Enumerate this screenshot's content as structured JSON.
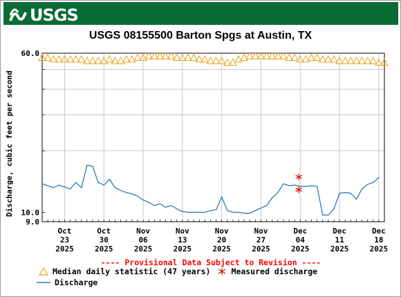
{
  "header": {
    "logo_text": "USGS"
  },
  "chart_data": {
    "type": "line",
    "title": "USGS 08155500 Barton Spgs at Austin, TX",
    "ylabel": "Discharge, cubic feet per second",
    "xlabel": "",
    "y_scale": "log",
    "ylim": [
      9.0,
      60.0
    ],
    "y_ticks": [
      {
        "value": 9.0,
        "label": "9.0"
      },
      {
        "value": 10.0,
        "label": "10.0"
      },
      {
        "value": 60.0,
        "label": "60.0"
      }
    ],
    "y_gridlines": [
      20,
      30,
      40,
      50
    ],
    "xlim": [
      "2025-10-19",
      "2025-12-19"
    ],
    "x_ticks": [
      {
        "date": "2025-10-23",
        "line1": "Oct",
        "line2": "23",
        "line3": "2025"
      },
      {
        "date": "2025-10-30",
        "line1": "Oct",
        "line2": "30",
        "line3": "2025"
      },
      {
        "date": "2025-11-06",
        "line1": "Nov",
        "line2": "06",
        "line3": "2025"
      },
      {
        "date": "2025-11-13",
        "line1": "Nov",
        "line2": "13",
        "line3": "2025"
      },
      {
        "date": "2025-11-20",
        "line1": "Nov",
        "line2": "20",
        "line3": "2025"
      },
      {
        "date": "2025-11-27",
        "line1": "Nov",
        "line2": "27",
        "line3": "2025"
      },
      {
        "date": "2025-12-04",
        "line1": "Dec",
        "line2": "04",
        "line3": "2025"
      },
      {
        "date": "2025-12-11",
        "line1": "Dec",
        "line2": "11",
        "line3": "2025"
      },
      {
        "date": "2025-12-18",
        "line1": "Dec",
        "line2": "18",
        "line3": "2025"
      }
    ],
    "grid": true,
    "series": [
      {
        "name": "Median daily statistic (47 years)",
        "marker": "triangle",
        "color": "#e8a317",
        "x": [
          "2025-10-19",
          "2025-10-20",
          "2025-10-21",
          "2025-10-22",
          "2025-10-23",
          "2025-10-24",
          "2025-10-25",
          "2025-10-26",
          "2025-10-27",
          "2025-10-28",
          "2025-10-29",
          "2025-10-30",
          "2025-10-31",
          "2025-11-01",
          "2025-11-02",
          "2025-11-03",
          "2025-11-04",
          "2025-11-05",
          "2025-11-06",
          "2025-11-07",
          "2025-11-08",
          "2025-11-09",
          "2025-11-10",
          "2025-11-11",
          "2025-11-12",
          "2025-11-13",
          "2025-11-14",
          "2025-11-15",
          "2025-11-16",
          "2025-11-17",
          "2025-11-18",
          "2025-11-19",
          "2025-11-20",
          "2025-11-21",
          "2025-11-22",
          "2025-11-23",
          "2025-11-24",
          "2025-11-25",
          "2025-11-26",
          "2025-11-27",
          "2025-11-28",
          "2025-11-29",
          "2025-11-30",
          "2025-12-01",
          "2025-12-02",
          "2025-12-03",
          "2025-12-04",
          "2025-12-05",
          "2025-12-06",
          "2025-12-07",
          "2025-12-08",
          "2025-12-09",
          "2025-12-10",
          "2025-12-11",
          "2025-12-12",
          "2025-12-13",
          "2025-12-14",
          "2025-12-15",
          "2025-12-16",
          "2025-12-17",
          "2025-12-18",
          "2025-12-19"
        ],
        "values": [
          57,
          57,
          56,
          56,
          56,
          56,
          56,
          56,
          55,
          55,
          55,
          55,
          56,
          55,
          55,
          56,
          56,
          57,
          57,
          58,
          58,
          58,
          58,
          58,
          57,
          57,
          57,
          57,
          56,
          56,
          55,
          55,
          55,
          54,
          54,
          56,
          57,
          58,
          58,
          58,
          58,
          58,
          58,
          58,
          57,
          57,
          56,
          56,
          57,
          57,
          56,
          56,
          56,
          55,
          55,
          55,
          55,
          55,
          55,
          55,
          54,
          54
        ]
      },
      {
        "name": "Discharge",
        "marker": "line",
        "color": "#2a7ab8",
        "x": [
          "2025-10-19",
          "2025-10-20",
          "2025-10-21",
          "2025-10-22",
          "2025-10-23",
          "2025-10-24",
          "2025-10-25",
          "2025-10-26",
          "2025-10-27",
          "2025-10-28",
          "2025-10-29",
          "2025-10-30",
          "2025-10-31",
          "2025-11-01",
          "2025-11-02",
          "2025-11-03",
          "2025-11-04",
          "2025-11-05",
          "2025-11-06",
          "2025-11-07",
          "2025-11-08",
          "2025-11-09",
          "2025-11-10",
          "2025-11-11",
          "2025-11-12",
          "2025-11-13",
          "2025-11-14",
          "2025-11-15",
          "2025-11-16",
          "2025-11-17",
          "2025-11-18",
          "2025-11-19",
          "2025-11-20",
          "2025-11-21",
          "2025-11-22",
          "2025-11-23",
          "2025-11-24",
          "2025-11-25",
          "2025-11-26",
          "2025-11-27",
          "2025-11-28",
          "2025-11-29",
          "2025-11-30",
          "2025-12-01",
          "2025-12-02",
          "2025-12-03",
          "2025-12-04",
          "2025-12-05",
          "2025-12-06",
          "2025-12-07",
          "2025-12-08",
          "2025-12-09",
          "2025-12-10",
          "2025-12-11",
          "2025-12-12",
          "2025-12-13",
          "2025-12-14",
          "2025-12-15",
          "2025-12-16",
          "2025-12-17",
          "2025-12-18"
        ],
        "values": [
          13.8,
          13.5,
          13.2,
          13.6,
          13.3,
          13.0,
          14.0,
          13.2,
          17.0,
          16.8,
          14.0,
          13.6,
          14.5,
          13.2,
          12.8,
          12.5,
          12.3,
          12.0,
          11.5,
          11.2,
          10.8,
          11.0,
          10.6,
          10.8,
          10.4,
          10.1,
          10.0,
          10.0,
          10.0,
          10.0,
          10.2,
          10.3,
          11.9,
          10.2,
          10.0,
          10.0,
          9.9,
          9.9,
          10.2,
          10.5,
          10.8,
          11.8,
          12.5,
          13.8,
          13.5,
          13.6,
          13.4,
          13.4,
          13.5,
          13.4,
          9.7,
          9.7,
          10.4,
          12.4,
          12.5,
          12.4,
          11.6,
          13.0,
          13.7,
          14.0,
          14.8
        ]
      },
      {
        "name": "Measured discharge",
        "marker": "asterisk",
        "color": "#d40000",
        "x": [
          "2025-12-03",
          "2025-12-03"
        ],
        "values": [
          14.9,
          12.9
        ]
      }
    ]
  },
  "notice": "---- Provisional Data Subject to Revision ----",
  "legend": {
    "median": "Median daily statistic (47 years)",
    "measured": "Measured discharge",
    "discharge": "Discharge"
  },
  "colors": {
    "banner": "#0a6b36",
    "median": "#e8a317",
    "discharge": "#2a7ab8",
    "measured": "#d40000",
    "notice": "#ff0000"
  }
}
